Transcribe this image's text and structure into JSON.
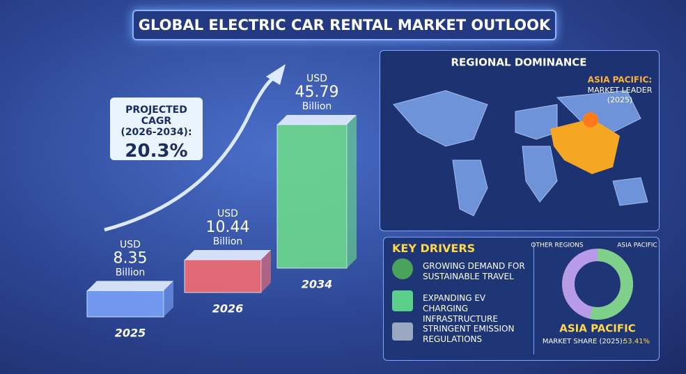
{
  "title": "GLOBAL ELECTRIC CAR RENTAL MARKET OUTLOOK",
  "cagr": {
    "label": "PROJECTED CAGR",
    "period": "(2026-2034):",
    "value": "20.3%"
  },
  "market": [
    {
      "currency": "USD",
      "value": 8.35,
      "unit": "Billion",
      "year": "2025",
      "color": "#7fa6ff"
    },
    {
      "currency": "USD",
      "value": 10.44,
      "unit": "Billion",
      "year": "2026",
      "color": "#ff6f6f"
    },
    {
      "currency": "USD",
      "value": 45.79,
      "unit": "Billion",
      "year": "2034",
      "color": "#6fe08a"
    }
  ],
  "regional": {
    "title": "REGIONAL DOMINANCE",
    "callout_title": "ASIA PACIFIC:",
    "callout_text": "MARKET LEADER",
    "callout_year": "(2025)"
  },
  "drivers": {
    "title": "KEY DRIVERS",
    "items": [
      "GROWING DEMAND FOR SUSTAINABLE TRAVEL",
      "EXPANDING EV CHARGING INFRASTRUCTURE",
      "STRINGENT EMISSION REGULATIONS"
    ]
  },
  "share": {
    "other_label": "OTHER REGIONS",
    "leader_label": "ASIA PACIFIC",
    "title": "ASIA PACIFIC",
    "caption": "MARKET SHARE (2025):",
    "value": 53.41,
    "value_label": "53.41%"
  }
}
